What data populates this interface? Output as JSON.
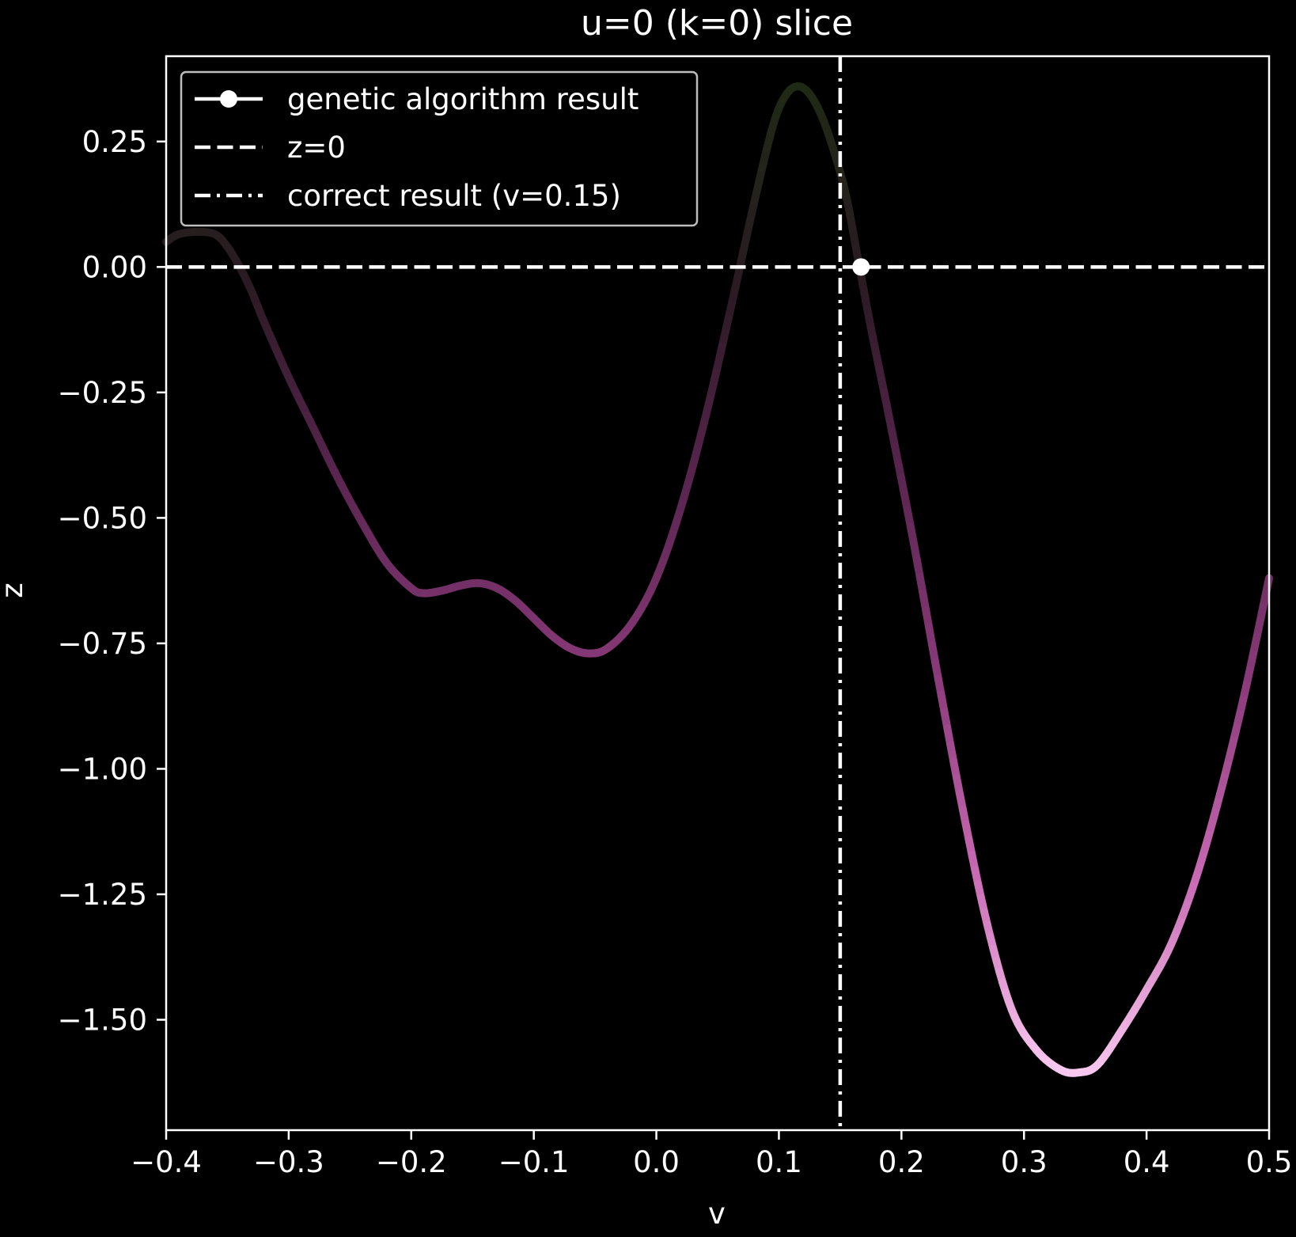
{
  "chart_data": {
    "type": "line",
    "title": "u=0 (k=0) slice",
    "xlabel": "v",
    "ylabel": "z",
    "xlim": [
      -0.4,
      0.5
    ],
    "ylim": [
      -1.72,
      0.42
    ],
    "xticks": [
      -0.4,
      -0.3,
      -0.2,
      -0.1,
      0.0,
      0.1,
      0.2,
      0.3,
      0.4,
      0.5
    ],
    "xtick_labels": [
      "−0.4",
      "−0.3",
      "−0.2",
      "−0.1",
      "0.0",
      "0.1",
      "0.2",
      "0.3",
      "0.4",
      "0.5"
    ],
    "yticks": [
      0.25,
      0.0,
      -0.25,
      -0.5,
      -0.75,
      -1.0,
      -1.25,
      -1.5
    ],
    "ytick_labels": [
      "0.25",
      "0.00",
      "−0.25",
      "−0.50",
      "−0.75",
      "−1.00",
      "−1.25",
      "−1.50"
    ],
    "grid": false,
    "legend_position": "top-left",
    "legend": [
      {
        "label": "genetic algorithm result",
        "style": "line-marker"
      },
      {
        "label": "z=0",
        "style": "dashed"
      },
      {
        "label": "correct result (v=0.15)",
        "style": "dashdot"
      }
    ],
    "series": [
      {
        "kind": "curve",
        "colormap": [
          "#1e2a14",
          "#2a1a22",
          "#5a2550",
          "#8a3a7a",
          "#c96ab4",
          "#f8c8f0"
        ],
        "points": [
          [
            -0.4,
            0.05
          ],
          [
            -0.39,
            0.065
          ],
          [
            -0.375,
            0.07
          ],
          [
            -0.36,
            0.065
          ],
          [
            -0.35,
            0.04
          ],
          [
            -0.34,
            0.0
          ],
          [
            -0.33,
            -0.05
          ],
          [
            -0.32,
            -0.11
          ],
          [
            -0.3,
            -0.22
          ],
          [
            -0.28,
            -0.32
          ],
          [
            -0.26,
            -0.42
          ],
          [
            -0.24,
            -0.51
          ],
          [
            -0.22,
            -0.59
          ],
          [
            -0.2,
            -0.64
          ],
          [
            -0.19,
            -0.65
          ],
          [
            -0.175,
            -0.645
          ],
          [
            -0.16,
            -0.635
          ],
          [
            -0.145,
            -0.63
          ],
          [
            -0.13,
            -0.64
          ],
          [
            -0.115,
            -0.665
          ],
          [
            -0.1,
            -0.7
          ],
          [
            -0.085,
            -0.735
          ],
          [
            -0.07,
            -0.76
          ],
          [
            -0.055,
            -0.77
          ],
          [
            -0.04,
            -0.76
          ],
          [
            -0.02,
            -0.71
          ],
          [
            0.0,
            -0.62
          ],
          [
            0.02,
            -0.48
          ],
          [
            0.04,
            -0.3
          ],
          [
            0.06,
            -0.09
          ],
          [
            0.08,
            0.13
          ],
          [
            0.095,
            0.28
          ],
          [
            0.105,
            0.34
          ],
          [
            0.115,
            0.36
          ],
          [
            0.125,
            0.345
          ],
          [
            0.135,
            0.3
          ],
          [
            0.145,
            0.23
          ],
          [
            0.155,
            0.14
          ],
          [
            0.165,
            0.01
          ],
          [
            0.175,
            -0.12
          ],
          [
            0.19,
            -0.3
          ],
          [
            0.21,
            -0.55
          ],
          [
            0.23,
            -0.82
          ],
          [
            0.25,
            -1.08
          ],
          [
            0.27,
            -1.31
          ],
          [
            0.29,
            -1.48
          ],
          [
            0.31,
            -1.56
          ],
          [
            0.33,
            -1.6
          ],
          [
            0.345,
            -1.605
          ],
          [
            0.36,
            -1.59
          ],
          [
            0.38,
            -1.52
          ],
          [
            0.4,
            -1.44
          ],
          [
            0.42,
            -1.35
          ],
          [
            0.44,
            -1.22
          ],
          [
            0.46,
            -1.05
          ],
          [
            0.48,
            -0.85
          ],
          [
            0.5,
            -0.62
          ]
        ]
      },
      {
        "kind": "hline",
        "name": "z=0",
        "y": 0.0,
        "color": "#ffffff",
        "style": "dashed"
      },
      {
        "kind": "vline",
        "name": "correct result (v=0.15)",
        "x": 0.15,
        "color": "#ffffff",
        "style": "dashdot"
      },
      {
        "kind": "point",
        "name": "genetic algorithm result",
        "x": 0.167,
        "y": 0.0,
        "color": "#ffffff"
      }
    ]
  }
}
